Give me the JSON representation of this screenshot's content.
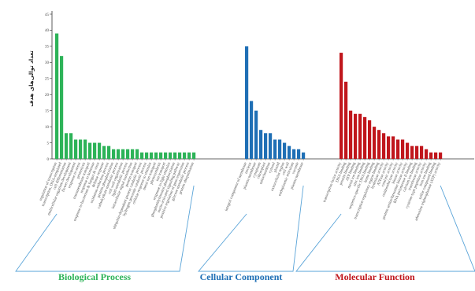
{
  "chart_data": {
    "type": "bar",
    "title": "",
    "xlabel": "",
    "ylabel": "تعداد توالی‌های هدف",
    "y_ticks": [
      "0",
      "5",
      "10",
      "15",
      "20",
      "25",
      "30",
      "35",
      "40",
      "45"
    ],
    "ylim": [
      0,
      45
    ],
    "grid": false,
    "colors": {
      "Biological Process": "#2db358",
      "Cellular Component": "#1f6fb5",
      "Molecular Function": "#c0161c",
      "axis": "#333333"
    },
    "groups": [
      {
        "name": "Biological Process",
        "color": "#2db358",
        "categories": [
          "regulation of transcription",
          "transcription, DNA-templated",
          "cell differentiation",
          "multicellular organism development",
          "flower development",
          "response to stress",
          "proteolysis",
          "transmembrane transport",
          "response to hormone",
          "response to bacterium & fungus & virus",
          "defense response",
          "oxidation-reduction process",
          "protein phosphorylation",
          "carbohydrate metabolic process",
          "cell wall organization",
          "lipid metabolic process",
          "intracellular signal transduction",
          "protein transport",
          "ubiquitin-dependent protein catabolic process",
          "hydrogen peroxide catabolic process",
          "cellular response to stimulus",
          "metal ion transport",
          "photosynthesis",
          "ion transport",
          "response to light stimulus",
          "phosphatidylinositol phosphorylation",
          "auxin-activated signaling pathway",
          "positive regulation of gene expression",
          "glucose metabolic process",
          "protein ubiquitination"
        ],
        "values": [
          39,
          32,
          8,
          8,
          6,
          6,
          6,
          5,
          5,
          5,
          4,
          4,
          3,
          3,
          3,
          3,
          3,
          3,
          2,
          2,
          2,
          2,
          2,
          2,
          2,
          2,
          2,
          2,
          2,
          2
        ]
      },
      {
        "name": "Cellular Component",
        "color": "#1f6fb5",
        "categories": [
          "integral component of membrane",
          "nucleus",
          "plasma membrane",
          "cytoplasm",
          "chloroplast",
          "mitochondrion",
          "cytosol",
          "plastid",
          "extracellular region",
          "cell wall",
          "endoplasmic reticulum",
          "vacuole",
          "plasma membrane"
        ],
        "values": [
          35,
          18,
          15,
          9,
          8,
          8,
          6,
          6,
          5,
          4,
          3,
          3,
          2
        ]
      },
      {
        "name": "Molecular Function",
        "color": "#c0161c",
        "categories": [
          "transcription factor activity",
          "DNA binding",
          "protein binding",
          "ATP binding",
          "metal ion binding",
          "zinc ion binding",
          "sequence-specific DNA binding",
          "heme binding",
          "transcription regulatory region binding",
          "hydrolase activity",
          "ATPase activity",
          "catalytic activity",
          "oxidoreductase activity",
          "kinase activity",
          "protein serine/threonine kinase activity",
          "RNA polymerase II binding",
          "calcium ion binding",
          "transferase activity",
          "cysteine-type peptidase activity",
          "iron ion binding",
          "sulfur compound binding",
          "adenosine triphosphatase (ATP) activity"
        ],
        "values": [
          33,
          24,
          15,
          14,
          14,
          13,
          12,
          10,
          9,
          8,
          7,
          7,
          6,
          6,
          5,
          4,
          4,
          4,
          3,
          2,
          2,
          2
        ]
      }
    ],
    "annotations": [
      "Biological Process",
      "Cellular Component",
      "Molecular Function"
    ]
  }
}
